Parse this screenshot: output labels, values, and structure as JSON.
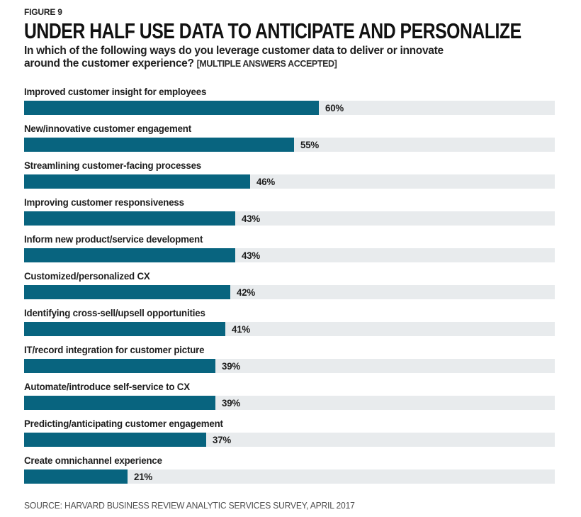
{
  "figure_label": "FIGURE 9",
  "title": "UNDER HALF USE DATA TO ANTICIPATE AND PERSONALIZE",
  "subtitle_line1": "In which of the following ways do you leverage customer data to deliver or innovate",
  "subtitle_line2": "around the customer experience?",
  "subtitle_note": "[MULTIPLE ANSWERS ACCEPTED]",
  "source": "SOURCE: HARVARD BUSINESS REVIEW ANALYTIC SERVICES SURVEY, APRIL 2017",
  "colors": {
    "bar": "#08647f",
    "track": "#e8ebed",
    "text": "#1c1c1c",
    "source_text": "#4f4f4f"
  },
  "chart_data": {
    "type": "bar",
    "orientation": "horizontal",
    "title": "UNDER HALF USE DATA TO ANTICIPATE AND PERSONALIZE",
    "xlabel": "",
    "ylabel": "",
    "value_suffix": "%",
    "xlim": [
      0,
      108
    ],
    "grid": false,
    "legend": false,
    "categories": [
      "Improved customer insight for employees",
      "New/innovative customer engagement",
      "Streamlining customer-facing processes",
      "Improving customer responsiveness",
      "Inform new product/service development",
      "Customized/personalized CX",
      "Identifying cross-sell/upsell opportunities",
      "IT/record integration for customer picture",
      "Automate/introduce self-service to CX",
      "Predicting/anticipating customer engagement",
      "Create omnichannel experience"
    ],
    "values": [
      60,
      55,
      46,
      43,
      43,
      42,
      41,
      39,
      39,
      37,
      21
    ]
  }
}
